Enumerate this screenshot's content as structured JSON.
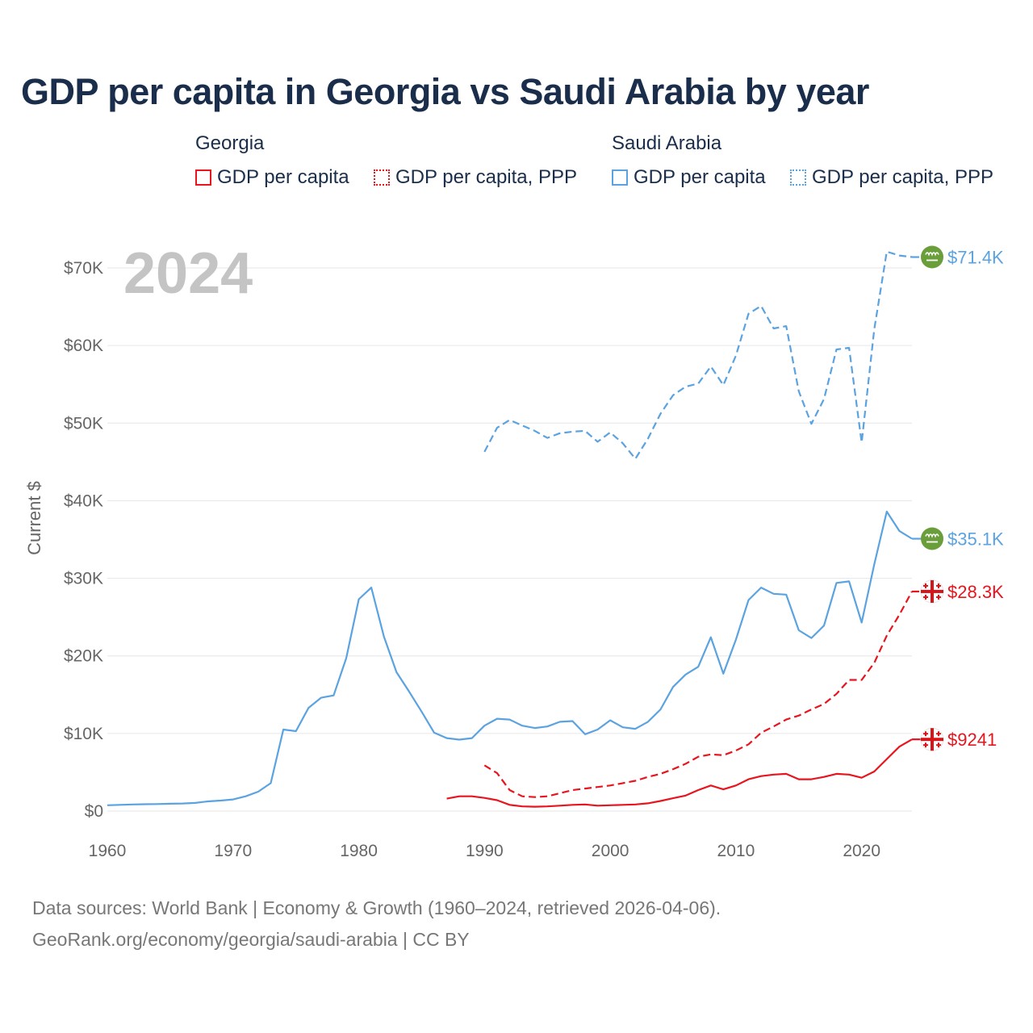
{
  "title": "GDP per capita in Georgia vs Saudi Arabia by year",
  "legend": {
    "groups": [
      {
        "name": "Georgia",
        "color": "#e8141e",
        "items": [
          {
            "label": "GDP per capita",
            "style": "solid"
          },
          {
            "label": "GDP per capita, PPP",
            "style": "dotted"
          }
        ]
      },
      {
        "name": "Saudi Arabia",
        "color": "#5ba3e0",
        "items": [
          {
            "label": "GDP per capita",
            "style": "solid"
          },
          {
            "label": "GDP per capita, PPP",
            "style": "dotted"
          }
        ]
      }
    ]
  },
  "footer": {
    "line1": "Data sources: World Bank | Economy & Growth (1960–2024, retrieved 2026-04-06).",
    "line2": "GeoRank.org/economy/georgia/saudi-arabia | CC BY"
  },
  "chart_data": {
    "type": "line",
    "year_label": "2024",
    "ylabel": "Current $",
    "xlim": [
      1960,
      2024
    ],
    "ylim": [
      0,
      70000
    ],
    "x_ticks": [
      "1960",
      "1970",
      "1980",
      "1990",
      "2000",
      "2010",
      "2020"
    ],
    "y_ticks": [
      "$0",
      "$10K",
      "$20K",
      "$30K",
      "$40K",
      "$50K",
      "$60K",
      "$70K"
    ],
    "grid": true,
    "end_labels": [
      {
        "text": "$71.4K",
        "series": "sa_ppp",
        "color": "#5ba3e0",
        "flag": "saudi-arabia-flag-icon"
      },
      {
        "text": "$35.1K",
        "series": "sa_gdp",
        "color": "#5ba3e0",
        "flag": "saudi-arabia-flag-icon"
      },
      {
        "text": "$28.3K",
        "series": "ge_ppp",
        "color": "#e8141e",
        "flag": "georgia-flag-icon"
      },
      {
        "text": "$9241",
        "series": "ge_gdp",
        "color": "#e8141e",
        "flag": "georgia-flag-icon"
      }
    ],
    "series": [
      {
        "id": "sa_ppp",
        "name": "Saudi Arabia — GDP per capita, PPP",
        "color": "#5ba3e0",
        "dash": "dashed",
        "x": [
          1990,
          1991,
          1992,
          1993,
          1994,
          1995,
          1996,
          1997,
          1998,
          1999,
          2000,
          2001,
          2002,
          2003,
          2004,
          2005,
          2006,
          2007,
          2008,
          2009,
          2010,
          2011,
          2012,
          2013,
          2014,
          2015,
          2016,
          2017,
          2018,
          2019,
          2020,
          2021,
          2022,
          2023,
          2024
        ],
        "values": [
          46300,
          49400,
          50400,
          49700,
          49000,
          48100,
          48700,
          48900,
          49000,
          47600,
          48800,
          47400,
          45400,
          48000,
          51200,
          53600,
          54700,
          55100,
          57300,
          54900,
          58700,
          64100,
          65100,
          62200,
          62500,
          54100,
          49900,
          53100,
          59500,
          59700,
          47500,
          62100,
          72100,
          71600,
          71400
        ]
      },
      {
        "id": "sa_gdp",
        "name": "Saudi Arabia — GDP per capita",
        "color": "#5ba3e0",
        "dash": "solid",
        "x": [
          1960,
          1961,
          1962,
          1963,
          1964,
          1965,
          1966,
          1967,
          1968,
          1969,
          1970,
          1971,
          1972,
          1973,
          1974,
          1975,
          1976,
          1977,
          1978,
          1979,
          1980,
          1981,
          1982,
          1983,
          1984,
          1985,
          1986,
          1987,
          1988,
          1989,
          1990,
          1991,
          1992,
          1993,
          1994,
          1995,
          1996,
          1997,
          1998,
          1999,
          2000,
          2001,
          2002,
          2003,
          2004,
          2005,
          2006,
          2007,
          2008,
          2009,
          2010,
          2011,
          2012,
          2013,
          2014,
          2015,
          2016,
          2017,
          2018,
          2019,
          2020,
          2021,
          2022,
          2023,
          2024
        ],
        "values": [
          750,
          800,
          850,
          880,
          900,
          950,
          980,
          1050,
          1250,
          1350,
          1500,
          1900,
          2500,
          3600,
          10500,
          10300,
          13300,
          14600,
          14900,
          19700,
          27300,
          28800,
          22500,
          17900,
          15400,
          12800,
          10100,
          9400,
          9200,
          9400,
          11000,
          11900,
          11800,
          11000,
          10700,
          10900,
          11500,
          11600,
          9900,
          10500,
          11700,
          10800,
          10600,
          11500,
          13100,
          16000,
          17600,
          18600,
          22400,
          17700,
          22100,
          27200,
          28800,
          28000,
          27900,
          23300,
          22300,
          23900,
          29400,
          29600,
          24300,
          31800,
          38600,
          36100,
          35100
        ]
      },
      {
        "id": "ge_ppp",
        "name": "Georgia — GDP per capita, PPP",
        "color": "#e8141e",
        "dash": "dashed",
        "x": [
          1990,
          1991,
          1992,
          1993,
          1994,
          1995,
          1996,
          1997,
          1998,
          1999,
          2000,
          2001,
          2002,
          2003,
          2004,
          2005,
          2006,
          2007,
          2008,
          2009,
          2010,
          2011,
          2012,
          2013,
          2014,
          2015,
          2016,
          2017,
          2018,
          2019,
          2020,
          2021,
          2022,
          2023,
          2024
        ],
        "values": [
          5900,
          4900,
          2700,
          1900,
          1800,
          1900,
          2300,
          2700,
          2900,
          3100,
          3300,
          3600,
          3900,
          4400,
          4800,
          5400,
          6100,
          7000,
          7300,
          7200,
          7800,
          8600,
          10100,
          10900,
          11800,
          12300,
          13100,
          13800,
          15100,
          16900,
          16900,
          19100,
          22600,
          25300,
          28300
        ]
      },
      {
        "id": "ge_gdp",
        "name": "Georgia — GDP per capita",
        "color": "#e8141e",
        "dash": "solid",
        "x": [
          1987,
          1988,
          1989,
          1990,
          1991,
          1992,
          1993,
          1994,
          1995,
          1996,
          1997,
          1998,
          1999,
          2000,
          2001,
          2002,
          2003,
          2004,
          2005,
          2006,
          2007,
          2008,
          2009,
          2010,
          2011,
          2012,
          2013,
          2014,
          2015,
          2016,
          2017,
          2018,
          2019,
          2020,
          2021,
          2022,
          2023,
          2024
        ],
        "values": [
          1600,
          1900,
          1900,
          1700,
          1400,
          800,
          600,
          560,
          600,
          700,
          800,
          850,
          700,
          750,
          800,
          850,
          1000,
          1300,
          1650,
          2000,
          2700,
          3300,
          2800,
          3300,
          4100,
          4500,
          4700,
          4800,
          4100,
          4100,
          4400,
          4800,
          4700,
          4300,
          5100,
          6700,
          8300,
          9241
        ]
      }
    ]
  }
}
